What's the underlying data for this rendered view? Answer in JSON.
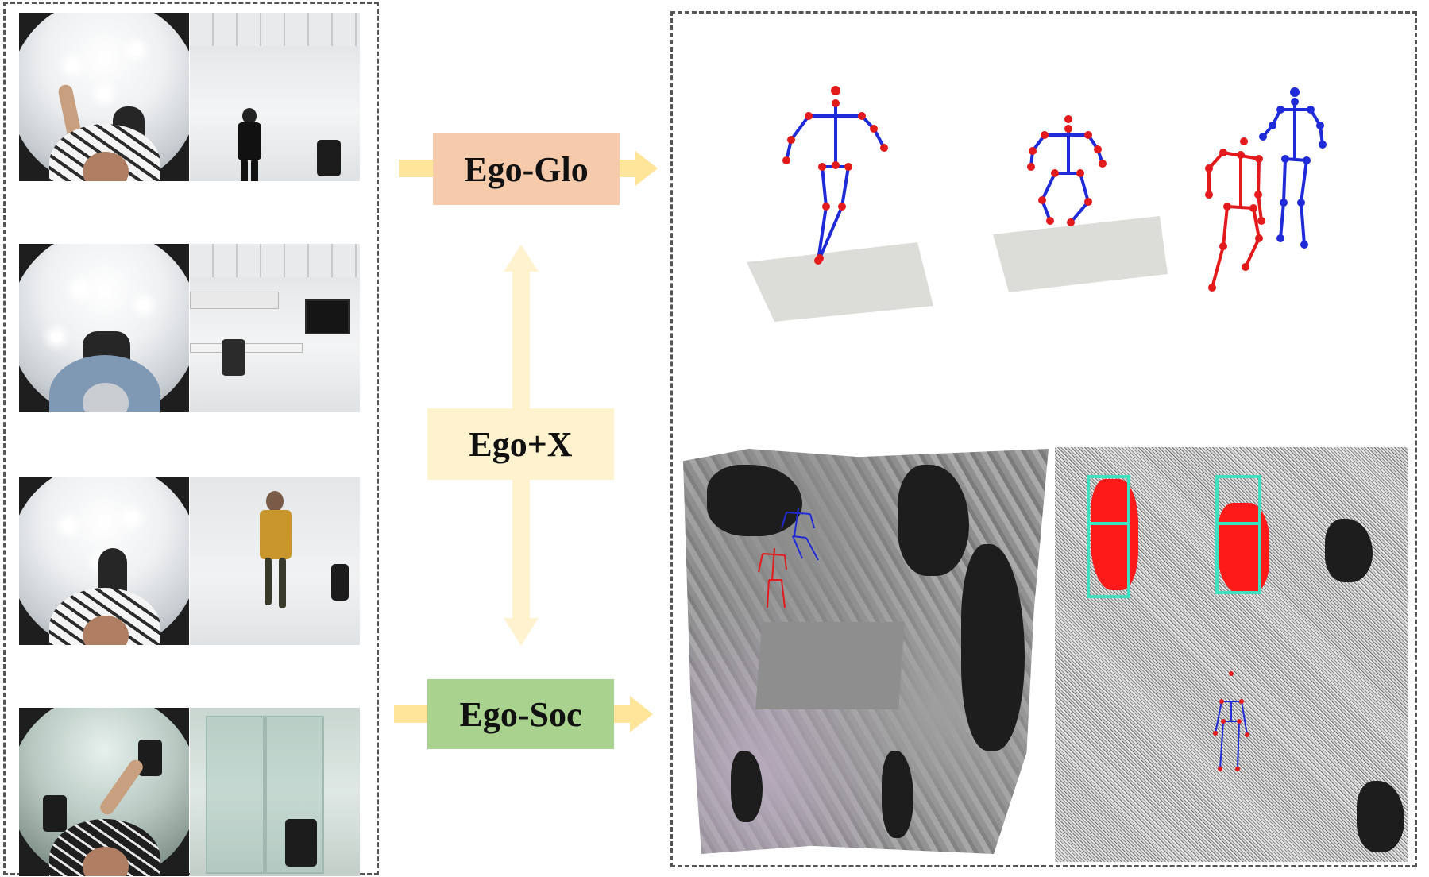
{
  "labels": {
    "ego_glo": "Ego-Glo",
    "ego_x": "Ego+X",
    "ego_soc": "Ego-Soc"
  },
  "colors": {
    "ego_glo_box": "#f6cbac",
    "ego_x_box": "#fff2cf",
    "ego_soc_box": "#a9d28e",
    "arrow": "#ffe599",
    "skeleton_red": "#e31a1c",
    "skeleton_blue": "#1f2ad8",
    "bbox": "#3fe0c0"
  },
  "input_views": [
    {
      "egocentric_view": "fisheye-top-down",
      "exocentric_view": "person-standing-in-room"
    },
    {
      "egocentric_view": "fisheye-seated",
      "exocentric_view": "office-with-monitor"
    },
    {
      "egocentric_view": "fisheye-top-down",
      "exocentric_view": "person-walking-toward-camera"
    },
    {
      "egocentric_view": "fisheye-waving",
      "exocentric_view": "glass-door-office"
    }
  ],
  "outputs": {
    "global_pose_examples": [
      "single-person-standing",
      "single-person-crouching",
      "two-person-interaction"
    ],
    "social_examples": [
      "point-cloud-scene-with-two-skeletons",
      "top-down-point-cloud-with-bounding-boxes"
    ]
  }
}
